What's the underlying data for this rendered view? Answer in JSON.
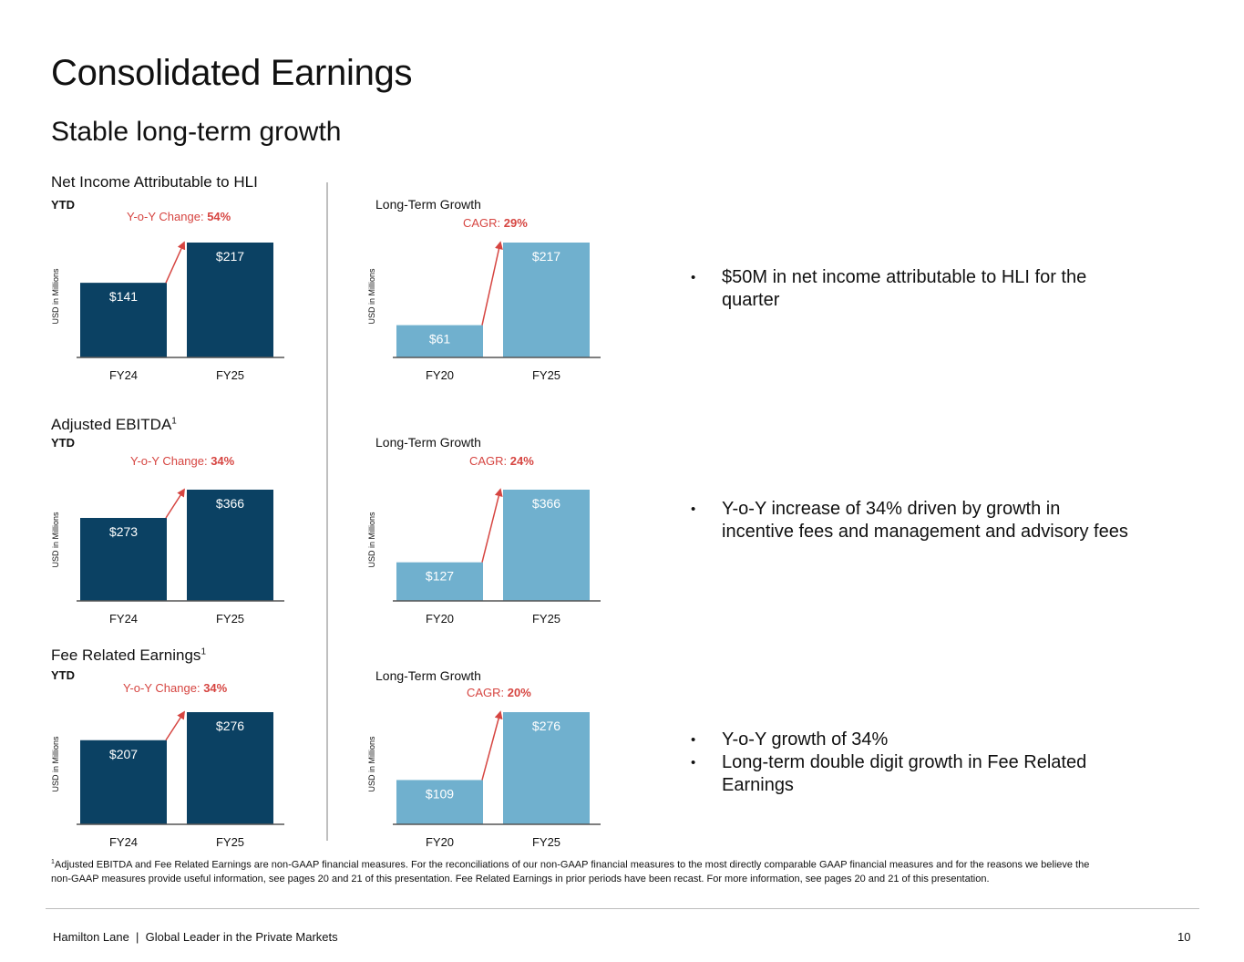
{
  "page": {
    "title": "Consolidated Earnings",
    "subtitle": "Stable long-term growth"
  },
  "colors": {
    "dark": "#0b4163",
    "light": "#70b0ce",
    "accent": "#d64541",
    "axis": "#555555"
  },
  "sections": [
    {
      "title": "Net Income Attributable to HLI",
      "title_sup": "",
      "ytd_label": "YTD",
      "yoy_prefix": "Y-o-Y Change:",
      "yoy_value": "54%",
      "ltg_label": "Long-Term Growth",
      "cagr_prefix": "CAGR:",
      "cagr_value": "29%",
      "ylabel": "USD in Millions",
      "bullets": [
        "$50M in net income attributable to HLI for the quarter"
      ]
    },
    {
      "title": "Adjusted EBITDA",
      "title_sup": "1",
      "ytd_label": "YTD",
      "yoy_prefix": "Y-o-Y Change:",
      "yoy_value": "34%",
      "ltg_label": "Long-Term Growth",
      "cagr_prefix": "CAGR:",
      "cagr_value": "24%",
      "ylabel": "USD in Millions",
      "bullets": [
        "Y-o-Y increase of 34% driven by growth in incentive fees and management and advisory fees"
      ]
    },
    {
      "title": "Fee Related Earnings",
      "title_sup": "1",
      "ytd_label": "YTD",
      "yoy_prefix": "Y-o-Y Change:",
      "yoy_value": "34%",
      "ltg_label": "Long-Term Growth",
      "cagr_prefix": "CAGR:",
      "cagr_value": "20%",
      "ylabel": "USD in Millions",
      "bullets": [
        "Y-o-Y growth of 34%",
        "Long-term double digit growth in Fee Related Earnings"
      ]
    }
  ],
  "chart_data": [
    {
      "type": "bar",
      "title": "Net Income Attributable to HLI - YTD",
      "categories": [
        "FY24",
        "FY25"
      ],
      "values": [
        141,
        217
      ],
      "labels": [
        "$141",
        "$217"
      ],
      "ylabel": "USD in Millions",
      "ylim": [
        0,
        217
      ],
      "color": "dark"
    },
    {
      "type": "bar",
      "title": "Net Income Attributable to HLI - Long-Term Growth",
      "categories": [
        "FY20",
        "FY25"
      ],
      "values": [
        61,
        217
      ],
      "labels": [
        "$61",
        "$217"
      ],
      "ylabel": "USD in Millions",
      "ylim": [
        0,
        217
      ],
      "color": "light"
    },
    {
      "type": "bar",
      "title": "Adjusted EBITDA - YTD",
      "categories": [
        "FY24",
        "FY25"
      ],
      "values": [
        273,
        366
      ],
      "labels": [
        "$273",
        "$366"
      ],
      "ylabel": "USD in Millions",
      "ylim": [
        0,
        366
      ],
      "color": "dark"
    },
    {
      "type": "bar",
      "title": "Adjusted EBITDA - Long-Term Growth",
      "categories": [
        "FY20",
        "FY25"
      ],
      "values": [
        127,
        366
      ],
      "labels": [
        "$127",
        "$366"
      ],
      "ylabel": "USD in Millions",
      "ylim": [
        0,
        366
      ],
      "color": "light"
    },
    {
      "type": "bar",
      "title": "Fee Related Earnings - YTD",
      "categories": [
        "FY24",
        "FY25"
      ],
      "values": [
        207,
        276
      ],
      "labels": [
        "$207",
        "$276"
      ],
      "ylabel": "USD in Millions",
      "ylim": [
        0,
        276
      ],
      "color": "dark"
    },
    {
      "type": "bar",
      "title": "Fee Related Earnings - Long-Term Growth",
      "categories": [
        "FY20",
        "FY25"
      ],
      "values": [
        109,
        276
      ],
      "labels": [
        "$109",
        "$276"
      ],
      "ylabel": "USD in Millions",
      "ylim": [
        0,
        276
      ],
      "color": "light"
    }
  ],
  "footnote": {
    "sup": "1",
    "text": "Adjusted EBITDA and Fee Related Earnings are non-GAAP financial measures. For the reconciliations of our non-GAAP financial measures to the most directly comparable GAAP financial measures and for the reasons we believe the non-GAAP measures provide useful information, see pages 20 and 21 of this presentation. Fee Related Earnings in prior periods have been recast. For more information, see pages 20 and 21 of this presentation."
  },
  "footer": {
    "text": "Hamilton Lane  |  Global Leader in the Private Markets",
    "page_number": "10"
  }
}
